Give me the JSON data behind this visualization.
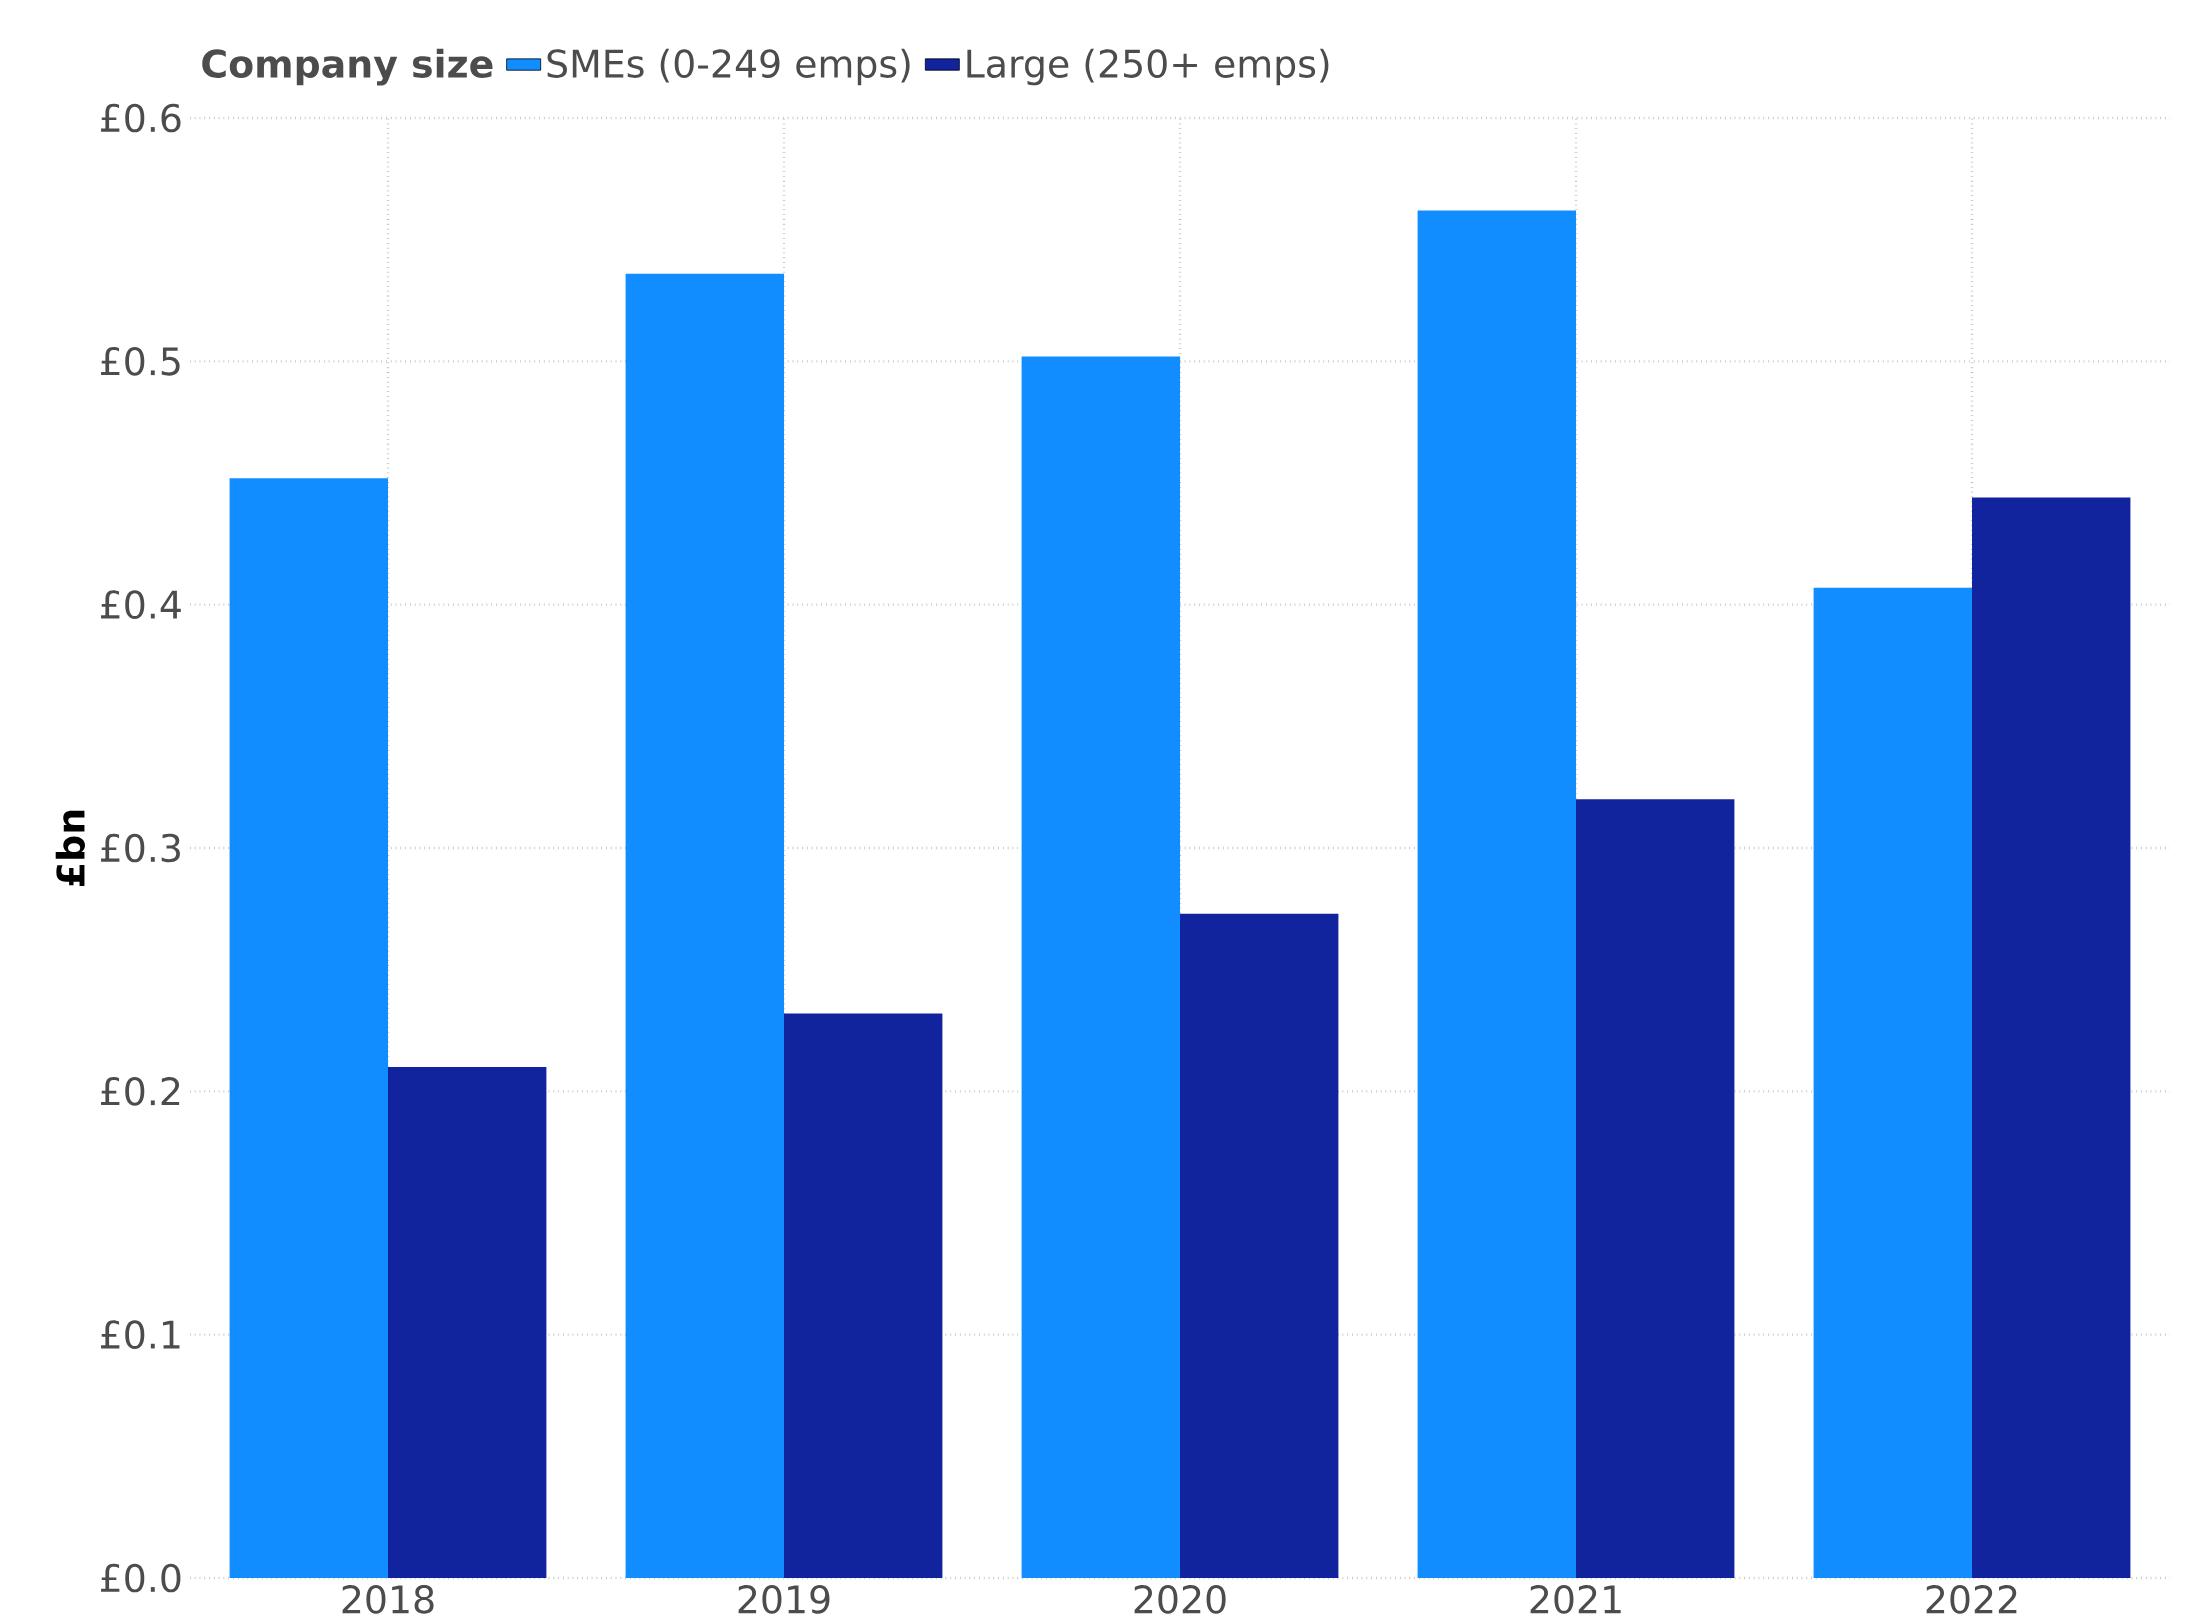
{
  "chart_data": {
    "type": "bar",
    "legend_title": "Company size",
    "ylabel": "£bn",
    "categories": [
      "2018",
      "2019",
      "2020",
      "2021",
      "2022"
    ],
    "series": [
      {
        "name": "SMEs (0-249 emps)",
        "color": "#118dff",
        "values": [
          0.452,
          0.536,
          0.502,
          0.562,
          0.407
        ]
      },
      {
        "name": "Large (250+ emps)",
        "color": "#12239e",
        "values": [
          0.21,
          0.232,
          0.273,
          0.32,
          0.444
        ]
      }
    ],
    "ylim": [
      0,
      0.6
    ],
    "yticks": [
      {
        "value": 0,
        "label": "£0.0"
      },
      {
        "value": 0.1,
        "label": "£0.1"
      },
      {
        "value": 0.2,
        "label": "£0.2"
      },
      {
        "value": 0.3,
        "label": "£0.3"
      },
      {
        "value": 0.4,
        "label": "£0.4"
      },
      {
        "value": 0.5,
        "label": "£0.5"
      },
      {
        "value": 0.6,
        "label": "£0.6"
      }
    ],
    "grid": true,
    "legend": "top left"
  }
}
